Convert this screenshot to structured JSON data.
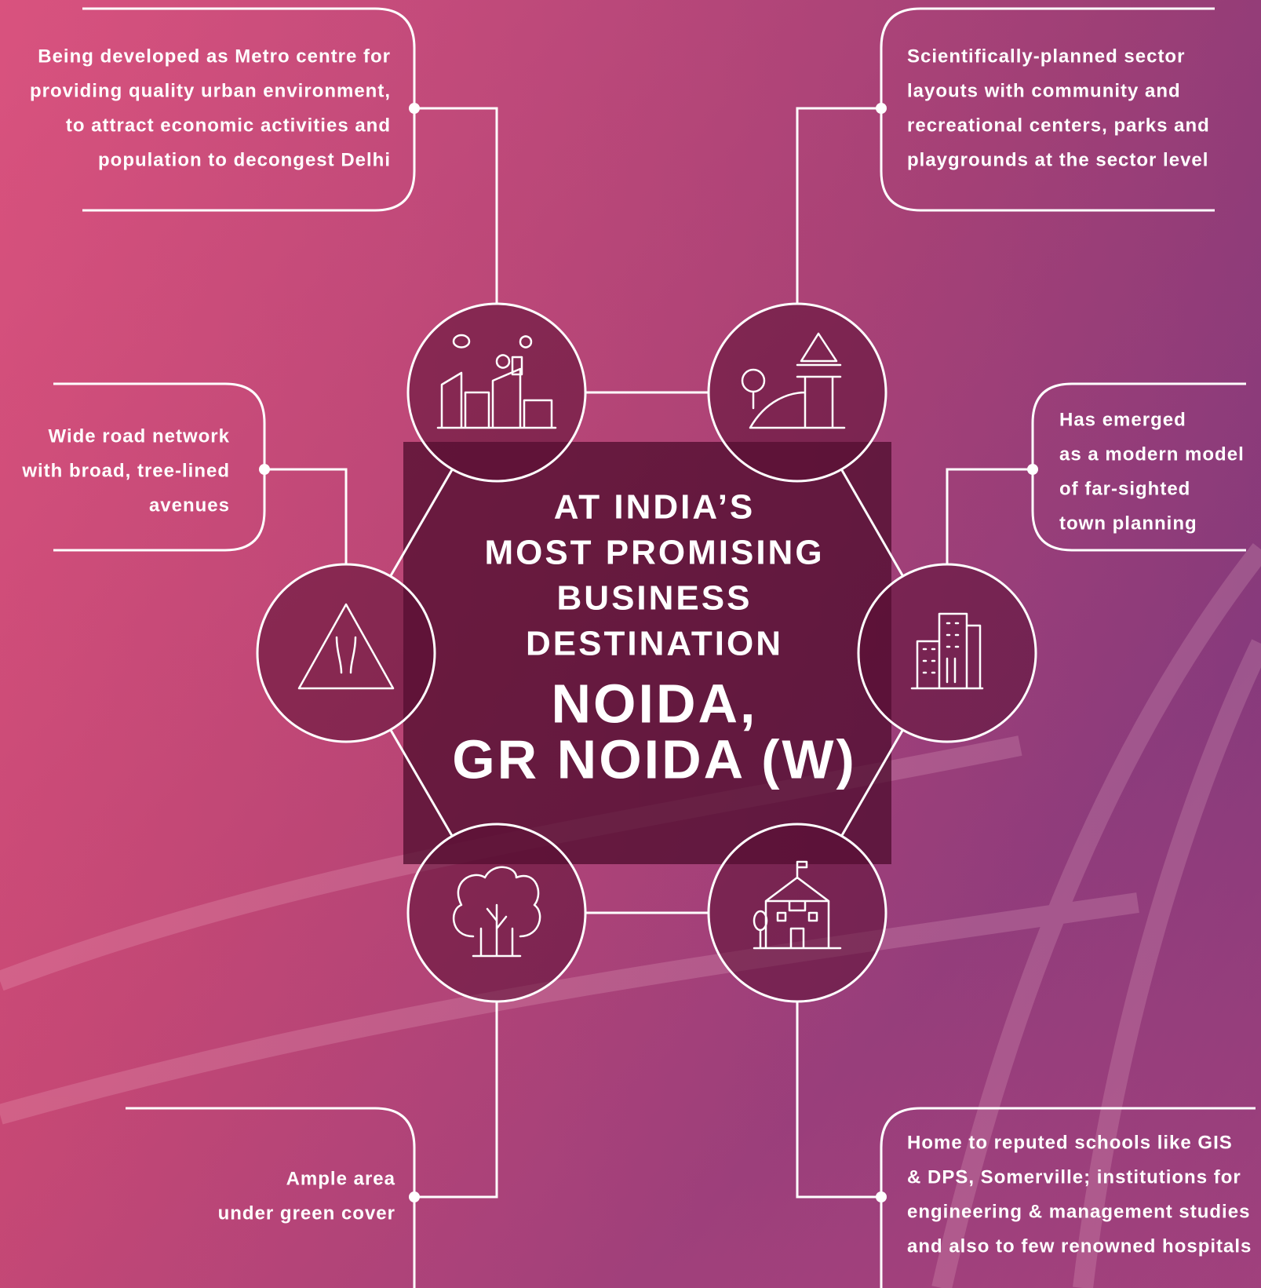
{
  "center": {
    "heading": [
      "AT INDIA’S",
      "MOST PROMISING",
      "BUSINESS",
      "DESTINATION"
    ],
    "title": [
      "NOIDA,",
      "GR NOIDA (W)"
    ]
  },
  "features": [
    {
      "lines": [
        "Being developed as Metro centre for",
        "providing quality urban environment,",
        "to attract economic activities and",
        "population to decongest Delhi"
      ]
    },
    {
      "lines": [
        "Scientifically-planned sector",
        "layouts with community and",
        "recreational centers, parks and",
        "playgrounds at the sector level"
      ]
    },
    {
      "lines": [
        "Wide road network",
        "with broad, tree-lined",
        "avenues"
      ]
    },
    {
      "lines": [
        "Has emerged",
        "as a modern model",
        "of far-sighted",
        "town planning"
      ]
    },
    {
      "lines": [
        "Ample area",
        "under green cover"
      ]
    },
    {
      "lines": [
        "Home to reputed schools like GIS",
        "& DPS, Somerville; institutions for",
        "engineering & management studies",
        "and also to few renowned hospitals"
      ]
    }
  ]
}
